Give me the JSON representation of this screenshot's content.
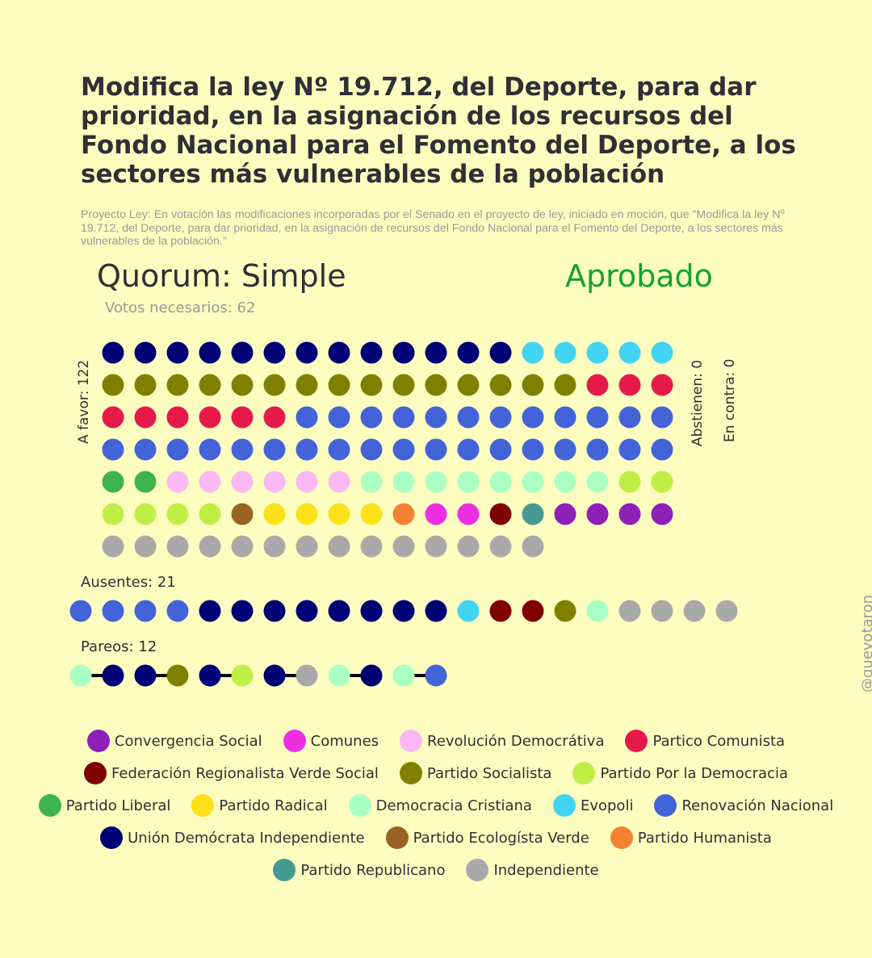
{
  "title": "Modifica la ley Nº 19.712, del Deporte, para dar prioridad, en la asignación de los recursos del Fondo Nacional para el Fomento del Deporte, a los sectores más vulnerables de la población",
  "subtitle": "Proyecto Ley: En votación las modificaciones incorporadas por el Senado en el proyecto de ley, iniciado en moción, que “Modifica la ley Nº 19.712, del Deporte, para dar prioridad, en la asignación de recursos del Fondo Nacional para el Fomento del Deporte, a los sectores más vulnerables de la población.”",
  "quorum_label": "Quorum: Simple",
  "result_label": "Aprobado",
  "votes_needed_label": "Votos necesarios: 62",
  "watermark": "@quevotaron",
  "labels": {
    "a_favor": "A favor: 122",
    "abstienen": "Abstienen: 0",
    "en_contra": "En contra: 0",
    "ausentes": "Ausentes: 21",
    "pareos": "Pareos: 12"
  },
  "colors": {
    "status_approved": "#12a332",
    "background": "#fdfdbf"
  },
  "chart_data": {
    "type": "dot-grid",
    "parties": [
      {
        "key": "CS",
        "name": "Convergencia Social",
        "color": "#8e1fb8"
      },
      {
        "key": "COM",
        "name": "Comunes",
        "color": "#ee2ee2"
      },
      {
        "key": "RD",
        "name": "Revolución Democrátiva",
        "color": "#fbb8f4"
      },
      {
        "key": "PC",
        "name": "Partico Comunista",
        "color": "#e6194b"
      },
      {
        "key": "FRVS",
        "name": "Federación Regionalista Verde Social",
        "color": "#800000"
      },
      {
        "key": "PS",
        "name": "Partido Socialista",
        "color": "#808000"
      },
      {
        "key": "PPD",
        "name": "Partido Por la Democracia",
        "color": "#bfef45"
      },
      {
        "key": "PL",
        "name": "Partido Liberal",
        "color": "#3cb44b"
      },
      {
        "key": "PR",
        "name": "Partido Radical",
        "color": "#ffe119"
      },
      {
        "key": "DC",
        "name": "Democracia Cristiana",
        "color": "#aaffc3"
      },
      {
        "key": "EVO",
        "name": "Evopoli",
        "color": "#42d4f4"
      },
      {
        "key": "RN",
        "name": "Renovación Nacional",
        "color": "#4363d8"
      },
      {
        "key": "UDI",
        "name": "Unión Demócrata Independiente",
        "color": "#000075"
      },
      {
        "key": "PEV",
        "name": "Partido Ecologísta Verde",
        "color": "#9a6324"
      },
      {
        "key": "PH",
        "name": "Partido Humanista",
        "color": "#f58231"
      },
      {
        "key": "REP",
        "name": "Partido Republicano",
        "color": "#469990"
      },
      {
        "key": "IND",
        "name": "Independiente",
        "color": "#a9a9a9"
      }
    ],
    "legend_rows": [
      [
        "CS",
        "COM",
        "RD",
        "PC"
      ],
      [
        "FRVS",
        "PS",
        "PPD"
      ],
      [
        "PL",
        "PR",
        "DC",
        "EVO",
        "RN"
      ],
      [
        "UDI",
        "PEV",
        "PH"
      ],
      [
        "REP",
        "IND"
      ]
    ],
    "groups": {
      "a_favor": {
        "count": 122,
        "seats": [
          {
            "party": "UDI",
            "n": 13
          },
          {
            "party": "EVO",
            "n": 5
          },
          {
            "party": "PS",
            "n": 15
          },
          {
            "party": "PC",
            "n": 9
          },
          {
            "party": "RN",
            "n": 30
          },
          {
            "party": "PL",
            "n": 2
          },
          {
            "party": "RD",
            "n": 6
          },
          {
            "party": "DC",
            "n": 8
          },
          {
            "party": "PPD",
            "n": 6
          },
          {
            "party": "PEV",
            "n": 1
          },
          {
            "party": "PR",
            "n": 4
          },
          {
            "party": "PH",
            "n": 1
          },
          {
            "party": "COM",
            "n": 2
          },
          {
            "party": "FRVS",
            "n": 1
          },
          {
            "party": "REP",
            "n": 1
          },
          {
            "party": "CS",
            "n": 4
          },
          {
            "party": "IND",
            "n": 14
          }
        ]
      },
      "abstienen": {
        "count": 0,
        "seats": []
      },
      "en_contra": {
        "count": 0,
        "seats": []
      },
      "ausentes": {
        "count": 21,
        "seats": [
          {
            "party": "RN",
            "n": 4
          },
          {
            "party": "UDI",
            "n": 8
          },
          {
            "party": "EVO",
            "n": 1
          },
          {
            "party": "FRVS",
            "n": 2
          },
          {
            "party": "PS",
            "n": 1
          },
          {
            "party": "DC",
            "n": 1
          },
          {
            "party": "IND",
            "n": 4
          }
        ]
      },
      "pareos": {
        "count": 12,
        "pairs": [
          [
            "DC",
            "UDI"
          ],
          [
            "UDI",
            "PS"
          ],
          [
            "UDI",
            "PPD"
          ],
          [
            "UDI",
            "IND"
          ],
          [
            "DC",
            "UDI"
          ],
          [
            "DC",
            "RN"
          ]
        ]
      }
    }
  }
}
